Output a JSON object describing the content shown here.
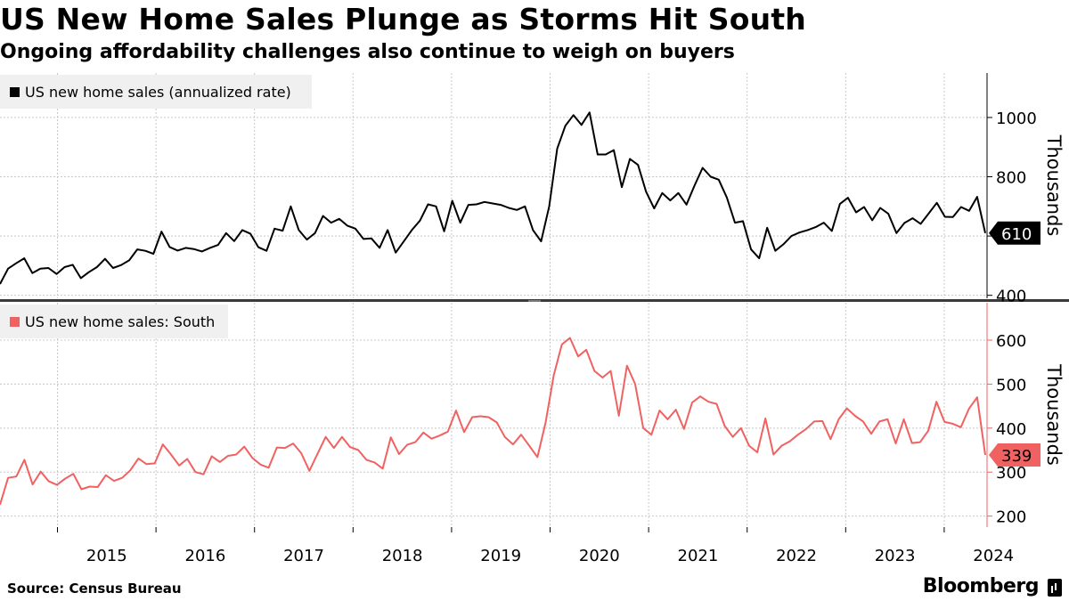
{
  "header": {
    "title": "US New Home Sales Plunge as Storms Hit South",
    "subtitle": "Ongoing affordability challenges also continue to weigh on buyers"
  },
  "footer": {
    "source": "Source:  Census Bureau",
    "brand": "Bloomberg"
  },
  "colors": {
    "national": "#000000",
    "south": "#f06262"
  },
  "chart_data": [
    {
      "type": "line",
      "series": [
        {
          "name": "US new home sales (annualized rate)",
          "values": [
            438,
            490,
            508,
            525,
            475,
            490,
            492,
            472,
            495,
            503,
            458,
            478,
            495,
            523,
            492,
            502,
            518,
            555,
            550,
            540,
            615,
            563,
            551,
            560,
            556,
            548,
            560,
            570,
            610,
            583,
            620,
            608,
            562,
            550,
            625,
            618,
            700,
            620,
            588,
            610,
            668,
            645,
            658,
            635,
            625,
            590,
            592,
            560,
            620,
            544,
            582,
            620,
            652,
            707,
            700,
            616,
            719,
            645,
            705,
            707,
            715,
            710,
            705,
            695,
            688,
            700,
            620,
            582,
            700,
            895,
            972,
            1008,
            975,
            1017,
            875,
            875,
            890,
            765,
            860,
            840,
            750,
            693,
            745,
            720,
            745,
            706,
            770,
            830,
            800,
            790,
            730,
            645,
            650,
            555,
            525,
            628,
            550,
            572,
            600,
            612,
            620,
            630,
            645,
            617,
            708,
            729,
            680,
            698,
            653,
            695,
            675,
            610,
            644,
            660,
            641,
            676,
            712,
            665,
            664,
            698,
            685,
            732,
            610
          ]
        }
      ],
      "x_start": "2014-06",
      "x_end": "2024-06",
      "x_ticks": [
        "2015",
        "2016",
        "2017",
        "2018",
        "2019",
        "2020",
        "2021",
        "2022",
        "2023",
        "2024"
      ],
      "ylabel": "Thousands",
      "ylim": [
        390,
        1150
      ],
      "y_ticks": [
        400,
        600,
        800,
        1000
      ],
      "last_value_label": "610",
      "grid": true
    },
    {
      "type": "line",
      "series": [
        {
          "name": "US new home sales: South",
          "values": [
            226,
            287,
            290,
            328,
            272,
            301,
            279,
            271,
            285,
            296,
            261,
            267,
            266,
            293,
            280,
            287,
            304,
            331,
            318,
            320,
            363,
            340,
            315,
            330,
            300,
            295,
            336,
            323,
            337,
            340,
            358,
            332,
            317,
            310,
            356,
            355,
            365,
            343,
            303,
            342,
            380,
            355,
            380,
            357,
            350,
            328,
            322,
            308,
            379,
            341,
            362,
            368,
            390,
            376,
            383,
            392,
            440,
            391,
            425,
            427,
            425,
            413,
            380,
            363,
            385,
            360,
            334,
            412,
            520,
            590,
            605,
            563,
            578,
            530,
            515,
            530,
            428,
            542,
            500,
            400,
            385,
            440,
            420,
            442,
            398,
            458,
            472,
            460,
            455,
            405,
            380,
            400,
            360,
            345,
            422,
            340,
            360,
            370,
            385,
            398,
            415,
            416,
            375,
            420,
            445,
            428,
            415,
            387,
            415,
            420,
            365,
            420,
            366,
            368,
            394,
            460,
            414,
            410,
            402,
            444,
            470,
            339
          ]
        }
      ],
      "x_start": "2014-06",
      "x_end": "2024-06",
      "x_ticks": [
        "2015",
        "2016",
        "2017",
        "2018",
        "2019",
        "2020",
        "2021",
        "2022",
        "2023",
        "2024"
      ],
      "ylabel": "Thousands",
      "ylim": [
        175,
        685
      ],
      "y_ticks": [
        200,
        300,
        400,
        500,
        600
      ],
      "last_value_label": "339",
      "grid": true
    }
  ]
}
